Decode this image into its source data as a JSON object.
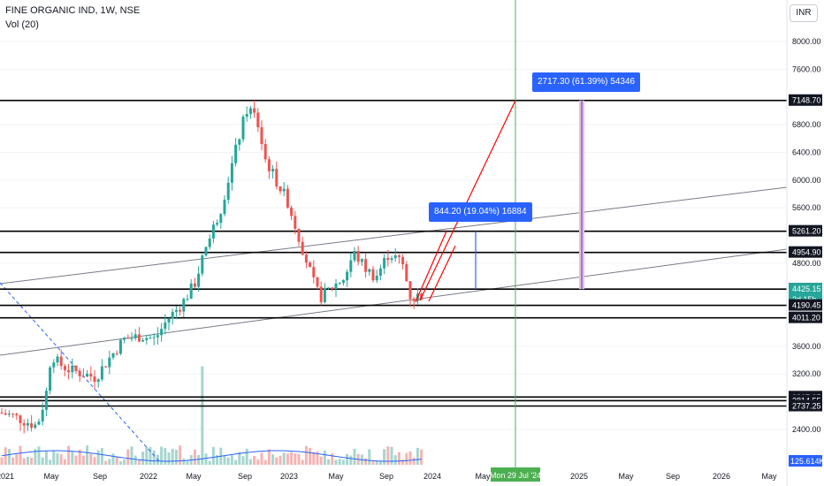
{
  "header": {
    "symbol": "FINE ORGANIC IND, 1W, NSE",
    "volume_label": "Vol (20)",
    "currency_button": "INR"
  },
  "colors": {
    "up": "#26a69a",
    "down": "#ef5350",
    "level_line": "#000000",
    "time_marker": "#4caf50",
    "projection": "#ff0000",
    "measure": "#2962ff",
    "volume_ma": "#2962ff"
  },
  "chart_data": {
    "type": "candlestick",
    "timeframe": "1W",
    "y_ticks": [
      "8000.00",
      "7600.00",
      "6800.00",
      "6400.00",
      "6000.00",
      "5600.00",
      "4800.00",
      "3600.00",
      "3200.00",
      "2400.00"
    ],
    "ylim": [
      2000,
      8200
    ],
    "x_ticks": [
      "2021",
      "May",
      "Sep",
      "2022",
      "May",
      "Sep",
      "2023",
      "May",
      "Sep",
      "2024",
      "May",
      "2025",
      "May",
      "Sep",
      "2026",
      "May"
    ],
    "horizontal_levels": [
      7148.7,
      5261.2,
      4954.9,
      4425.2,
      4190.45,
      4011.2,
      2867.25,
      2814.55,
      2737.25
    ],
    "price_labels": [
      {
        "text": "7148.70",
        "dark": true
      },
      {
        "text": "5261.20",
        "dark": true
      },
      {
        "text": "4954.90",
        "dark": true
      },
      {
        "text": "4425.20",
        "dark": true
      },
      {
        "text": "4425.15",
        "dark": false
      },
      {
        "text": "2d 15h",
        "dark": false
      },
      {
        "text": "4190.45",
        "dark": true
      },
      {
        "text": "4011.20",
        "dark": true
      },
      {
        "text": "2867.25",
        "dark": true
      },
      {
        "text": "2814.55",
        "dark": true
      },
      {
        "text": "2737.25",
        "dark": true
      }
    ],
    "current_price": 4425.15,
    "countdown": "2d 15h",
    "volume_ma_value": "125.614K",
    "time_marker_label": "Mon 29 Jul '24",
    "annotations": [
      {
        "text": "2717.30 (61.39%) 54346"
      },
      {
        "text": "844.20 (19.04%) 16884"
      }
    ]
  }
}
